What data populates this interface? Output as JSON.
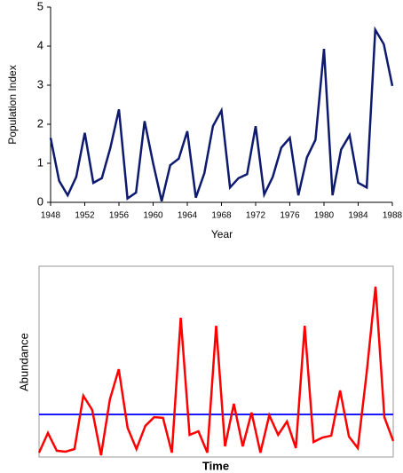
{
  "chart_data": [
    {
      "type": "line",
      "x_label": "Year",
      "y_label": "Population Index",
      "x": [
        1948,
        1949,
        1950,
        1951,
        1952,
        1953,
        1954,
        1955,
        1956,
        1957,
        1958,
        1959,
        1960,
        1961,
        1962,
        1963,
        1964,
        1965,
        1966,
        1967,
        1968,
        1969,
        1970,
        1971,
        1972,
        1973,
        1974,
        1975,
        1976,
        1977,
        1978,
        1979,
        1980,
        1981,
        1982,
        1983,
        1984,
        1985,
        1986,
        1987,
        1988
      ],
      "series": [
        {
          "color": "#0d1a6e",
          "values": [
            1.65,
            0.55,
            0.18,
            0.65,
            1.78,
            0.5,
            0.62,
            1.4,
            2.38,
            0.1,
            0.25,
            2.08,
            1.0,
            0.03,
            0.95,
            1.12,
            1.82,
            0.12,
            0.75,
            1.95,
            2.35,
            0.38,
            0.62,
            0.72,
            1.95,
            0.2,
            0.65,
            1.4,
            1.65,
            0.18,
            1.15,
            1.6,
            3.93,
            0.18,
            1.35,
            1.72,
            0.5,
            0.38,
            4.42,
            4.05,
            2.98
          ]
        }
      ],
      "xlim": [
        1948,
        1988
      ],
      "xticks": [
        1948,
        1952,
        1956,
        1960,
        1964,
        1968,
        1972,
        1976,
        1980,
        1984,
        1988
      ],
      "ylim": [
        0,
        5
      ],
      "yticks": [
        0,
        1,
        2,
        3,
        4,
        5
      ]
    },
    {
      "type": "line",
      "x_label": "Time",
      "y_label": "Abundance",
      "categories": [
        null,
        null,
        null,
        null,
        null,
        null,
        null,
        null,
        null,
        null,
        null,
        null,
        null,
        null,
        null,
        null,
        null,
        null,
        null,
        null,
        null,
        null,
        null,
        null,
        null,
        null,
        null,
        null,
        null,
        null,
        null,
        null,
        null,
        null,
        null,
        null,
        null,
        null,
        null,
        null,
        null
      ],
      "series": [
        {
          "color": "#ff0000",
          "values": [
            2.3,
            12.6,
            3.3,
            2.8,
            4.2,
            32.1,
            24.7,
            0.9,
            30.2,
            46.0,
            15.3,
            4.2,
            16.3,
            20.9,
            20.5,
            2.3,
            73.0,
            11.6,
            13.5,
            2.3,
            68.8,
            5.6,
            27.9,
            5.6,
            23.3,
            2.3,
            21.9,
            11.6,
            18.6,
            4.7,
            68.8,
            7.9,
            10.2,
            11.2,
            34.9,
            10.7,
            4.7,
            44.2,
            89.3,
            20.9,
            8.4
          ]
        }
      ],
      "reference_line": {
        "value": 22.3,
        "color": "#1a1aff"
      },
      "ylim": [
        0,
        100
      ]
    }
  ]
}
